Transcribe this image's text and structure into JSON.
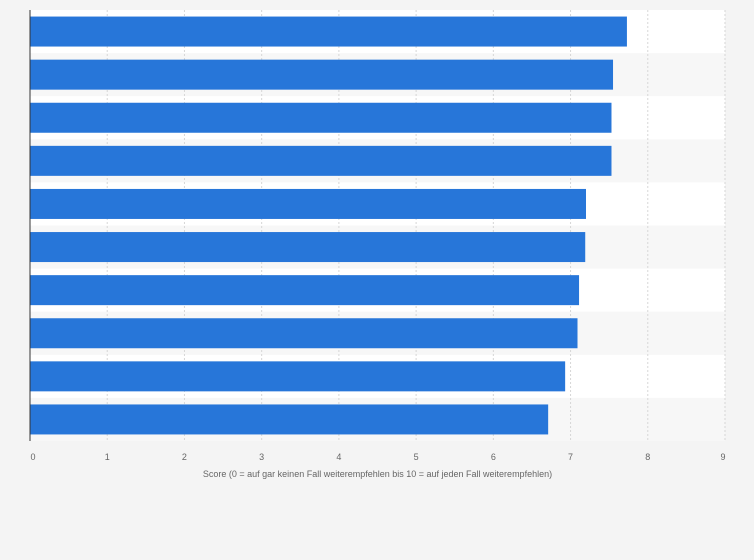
{
  "chart_data": {
    "type": "bar",
    "orientation": "horizontal",
    "title": "",
    "categories": [
      "",
      "",
      "",
      "",
      "",
      "",
      "",
      "",
      "",
      ""
    ],
    "values": [
      7.73,
      7.55,
      7.53,
      7.53,
      7.2,
      7.19,
      7.11,
      7.09,
      6.93,
      6.71
    ],
    "xlabel": "Score (0 = auf gar keinen Fall weiterempfehlen bis 10 = auf jeden Fall weiterempfehlen)",
    "ylabel": "",
    "xlim": [
      0,
      9
    ],
    "x_ticks": [
      "0",
      "1",
      "2",
      "3",
      "4",
      "5",
      "6",
      "7",
      "8",
      "9"
    ],
    "grid": true,
    "legend": "none",
    "colors": {
      "bar": "#2776d9",
      "plot_background": "#ffffff",
      "band_alt": "#f7f7f7",
      "page_background": "#f4f4f4",
      "axis": "#333333",
      "grid": "#d6d6d6",
      "text": "#666666"
    }
  }
}
